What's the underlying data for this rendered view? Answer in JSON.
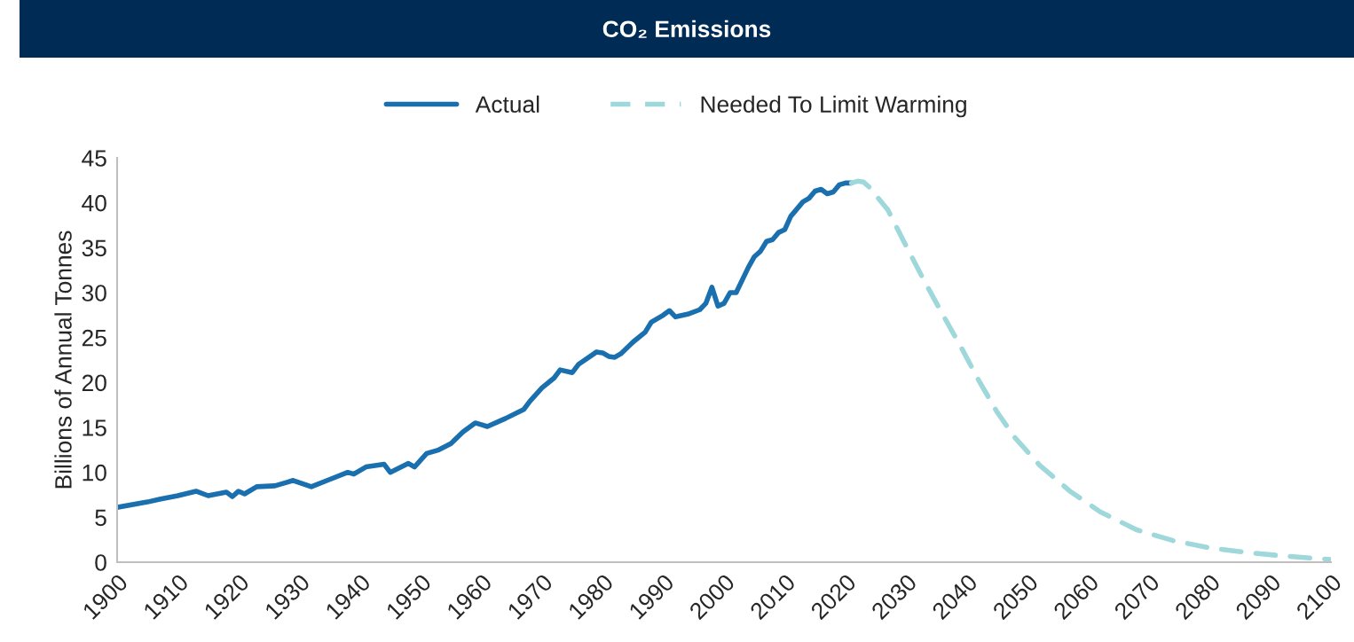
{
  "chart_data": {
    "type": "line",
    "title": "CO₂ Emissions",
    "ylabel": "Billions of Annual Tonnes",
    "xlim": [
      1900,
      2100
    ],
    "xticks": [
      1900,
      1910,
      1920,
      1930,
      1940,
      1950,
      1960,
      1970,
      1980,
      1990,
      2000,
      2010,
      2020,
      2030,
      2040,
      2050,
      2060,
      2070,
      2080,
      2090,
      2100
    ],
    "ylim": [
      0,
      45
    ],
    "yticks": [
      0,
      5,
      10,
      15,
      20,
      25,
      30,
      35,
      40,
      45
    ],
    "grid": false,
    "legend": "top",
    "marker": "none",
    "series": [
      {
        "name": "Actual",
        "color": "#1a6faf",
        "line_style": "solid",
        "x": [
          1900,
          1905,
          1907,
          1910,
          1913,
          1915,
          1918,
          1919,
          1920,
          1921,
          1923,
          1926,
          1928,
          1929,
          1932,
          1935,
          1938,
          1939,
          1941,
          1944,
          1945,
          1948,
          1949,
          1951,
          1953,
          1955,
          1957,
          1959,
          1960,
          1961,
          1964,
          1967,
          1968,
          1970,
          1972,
          1973,
          1975,
          1976,
          1979,
          1980,
          1981,
          1982,
          1983,
          1985,
          1987,
          1988,
          1990,
          1991,
          1992,
          1994,
          1996,
          1997,
          1998,
          1999,
          2000,
          2001,
          2002,
          2004,
          2005,
          2006,
          2007,
          2008,
          2009,
          2010,
          2011,
          2013,
          2014,
          2015,
          2016,
          2017,
          2018,
          2019,
          2020,
          2021
        ],
        "values": [
          6.1,
          6.7,
          7.0,
          7.4,
          7.9,
          7.4,
          7.8,
          7.3,
          7.9,
          7.6,
          8.4,
          8.5,
          8.9,
          9.1,
          8.4,
          9.2,
          10.0,
          9.8,
          10.6,
          10.9,
          10.0,
          11.0,
          10.6,
          12.1,
          12.5,
          13.2,
          14.5,
          15.5,
          15.3,
          15.1,
          16.0,
          17.0,
          17.9,
          19.4,
          20.5,
          21.4,
          21.1,
          22.0,
          23.4,
          23.3,
          22.9,
          22.8,
          23.2,
          24.5,
          25.6,
          26.7,
          27.5,
          28.0,
          27.3,
          27.6,
          28.1,
          28.8,
          30.6,
          28.5,
          28.8,
          30.0,
          30.0,
          32.8,
          34.0,
          34.6,
          35.7,
          35.9,
          36.7,
          37.0,
          38.5,
          40.1,
          40.5,
          41.3,
          41.5,
          41.0,
          41.2,
          42.0,
          42.2,
          42.2
        ]
      },
      {
        "name": "Needed To Limit Warming",
        "color": "#9fd8db",
        "line_style": "dashed",
        "x": [
          2021,
          2022,
          2023,
          2024,
          2027,
          2030,
          2033,
          2036,
          2039,
          2042,
          2045,
          2048,
          2052,
          2057,
          2062,
          2068,
          2074,
          2080,
          2086,
          2092,
          2098,
          2100
        ],
        "values": [
          42.2,
          42.4,
          42.3,
          41.7,
          39.2,
          35.2,
          31.3,
          27.6,
          24.0,
          20.2,
          16.7,
          13.8,
          10.8,
          7.9,
          5.6,
          3.6,
          2.4,
          1.6,
          1.1,
          0.7,
          0.4,
          0.3
        ]
      }
    ]
  }
}
